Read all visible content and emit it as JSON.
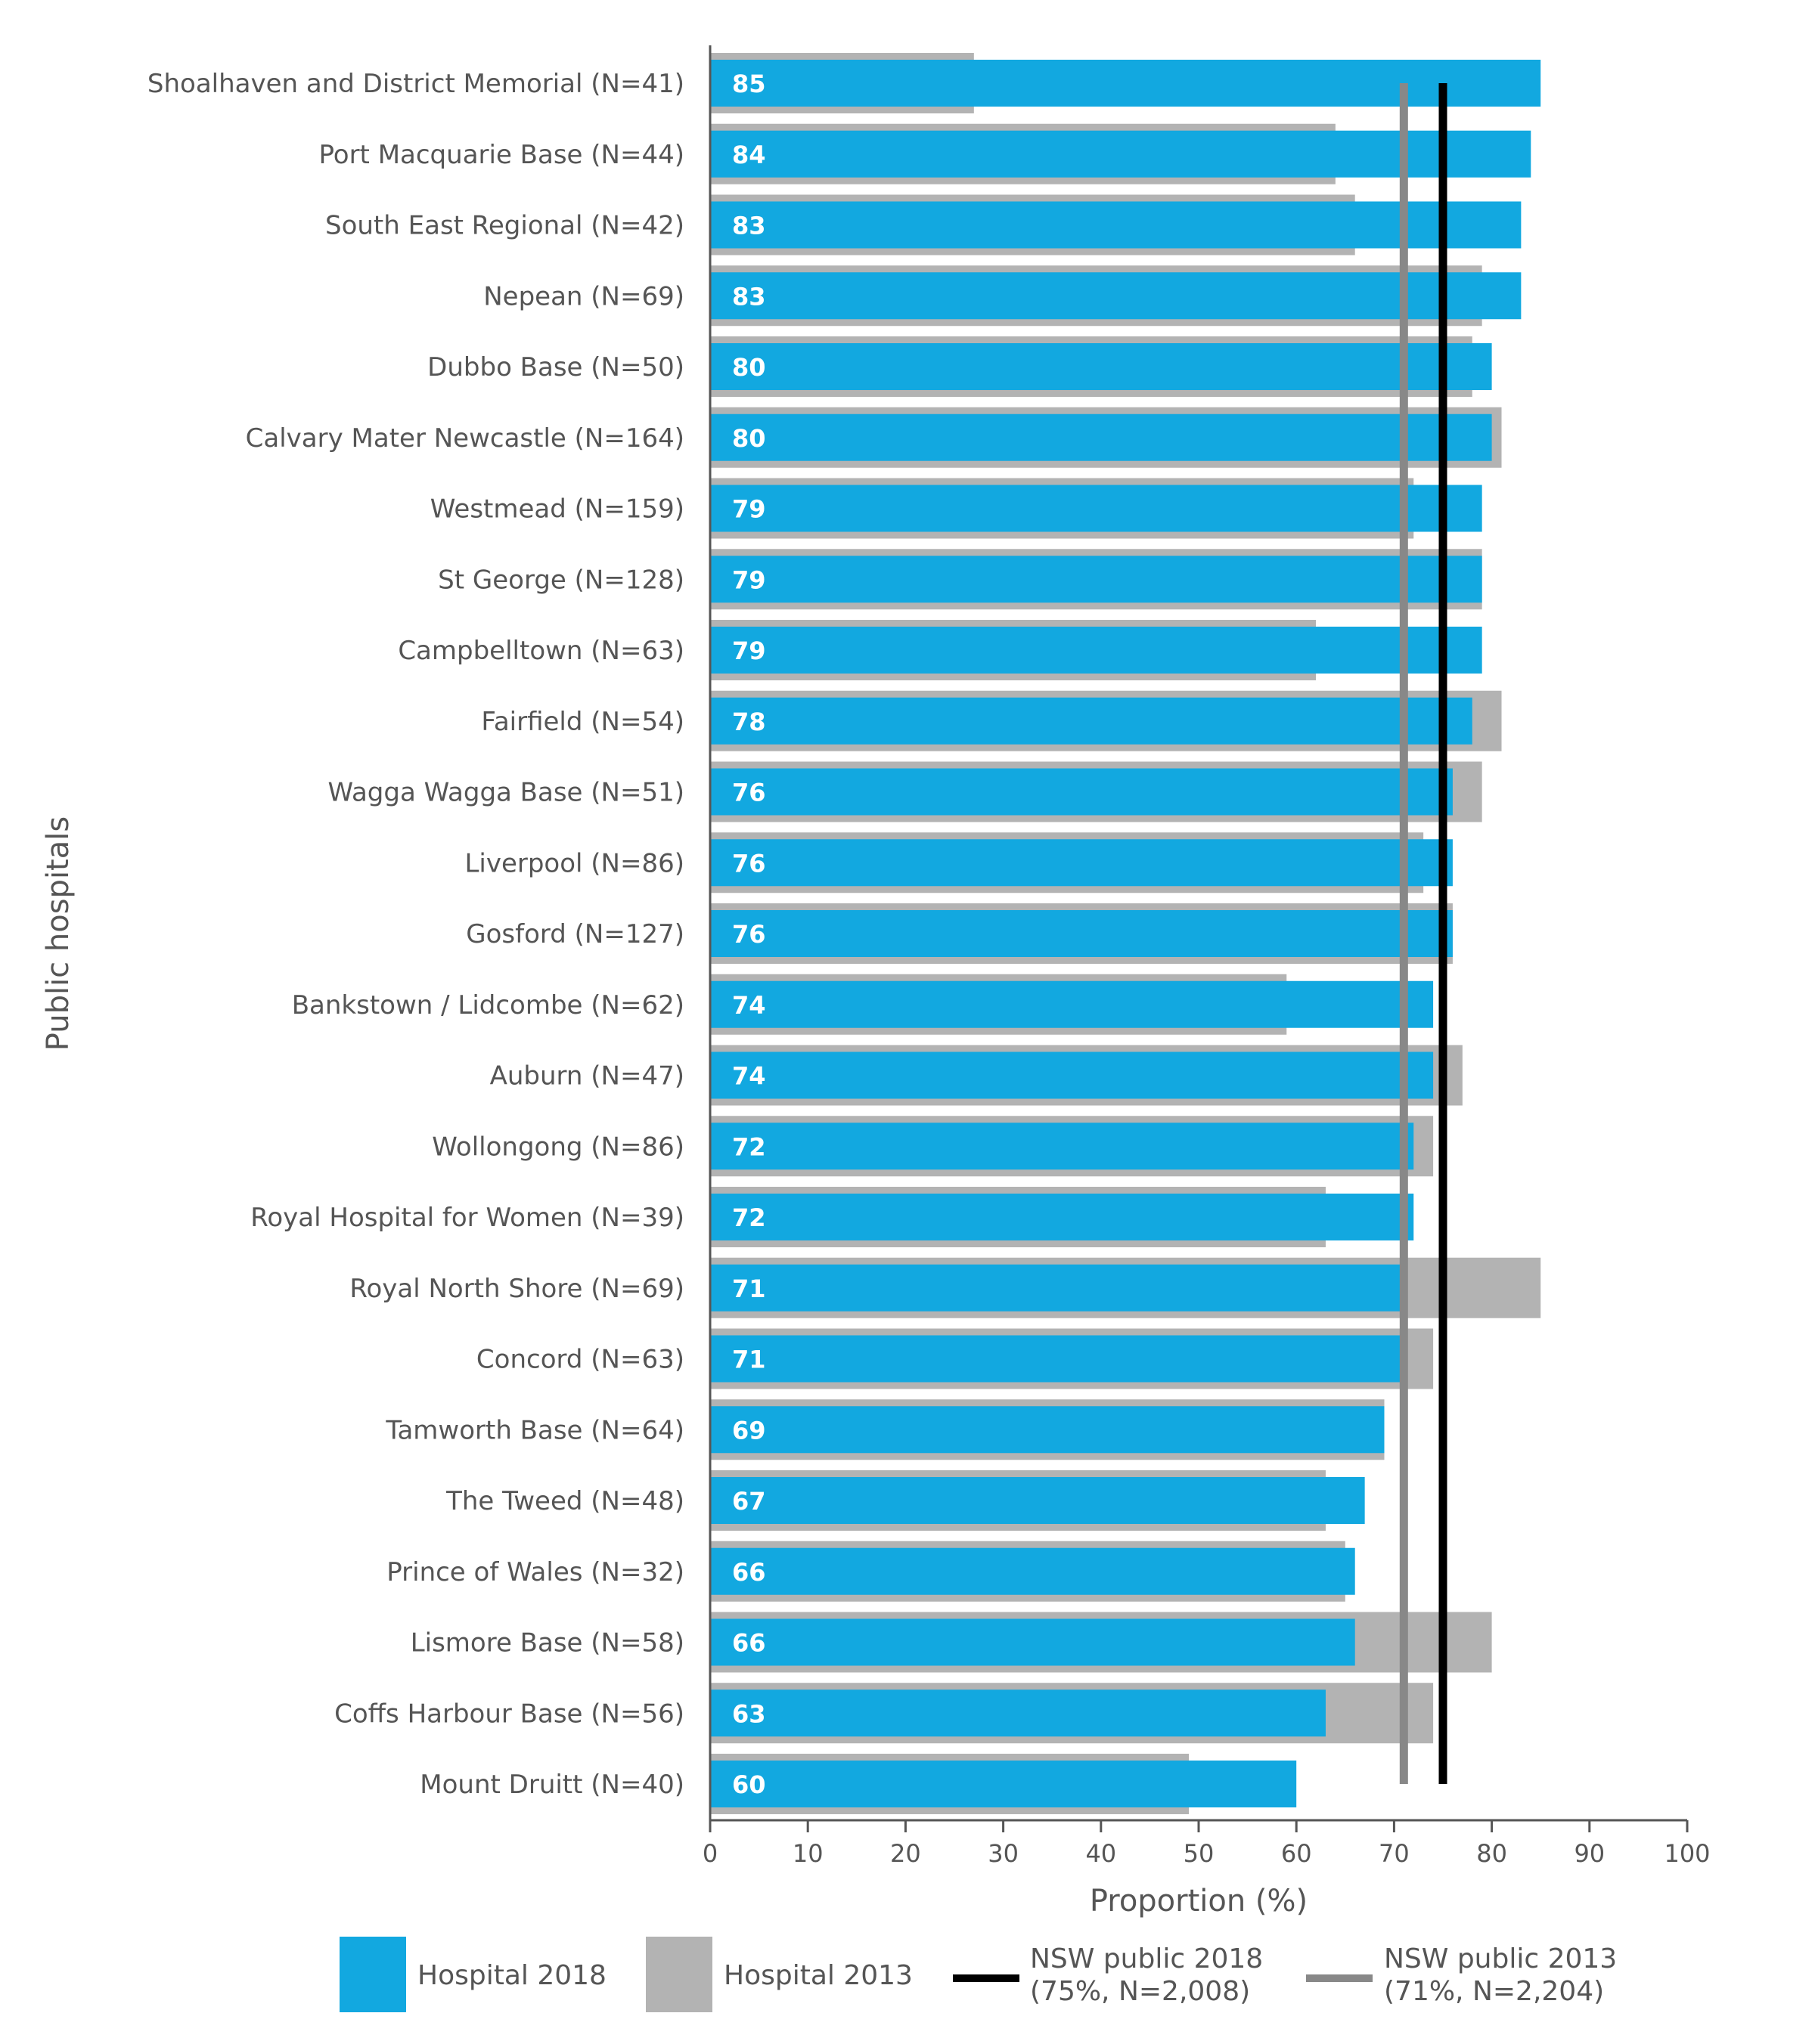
{
  "chart_data": {
    "type": "bar",
    "orientation": "horizontal",
    "xlabel": "Proportion (%)",
    "ylabel": "Public hospitals",
    "xlim": [
      0,
      100
    ],
    "xticks": [
      0,
      10,
      20,
      30,
      40,
      50,
      60,
      70,
      80,
      90,
      100
    ],
    "grid": false,
    "legend_placement": "bottom",
    "categories": [
      "Shoalhaven and District Memorial (N=41)",
      "Port Macquarie Base (N=44)",
      "South East Regional (N=42)",
      "Nepean (N=69)",
      "Dubbo Base (N=50)",
      "Calvary Mater Newcastle (N=164)",
      "Westmead (N=159)",
      "St George (N=128)",
      "Campbelltown (N=63)",
      "Fairfield (N=54)",
      "Wagga Wagga Base (N=51)",
      "Liverpool (N=86)",
      "Gosford (N=127)",
      "Bankstown / Lidcombe (N=62)",
      "Auburn (N=47)",
      "Wollongong (N=86)",
      "Royal Hospital for Women (N=39)",
      "Royal North Shore (N=69)",
      "Concord (N=63)",
      "Tamworth Base (N=64)",
      "The Tweed (N=48)",
      "Prince of Wales (N=32)",
      "Lismore Base (N=58)",
      "Coffs Harbour Base (N=56)",
      "Mount Druitt (N=40)"
    ],
    "series": [
      {
        "name": "Hospital 2018",
        "color": "#12a8e0",
        "values": [
          85,
          84,
          83,
          83,
          80,
          80,
          79,
          79,
          79,
          78,
          76,
          76,
          76,
          74,
          74,
          72,
          72,
          71,
          71,
          69,
          67,
          66,
          66,
          63,
          60
        ]
      },
      {
        "name": "Hospital 2013",
        "color": "#b3b3b3",
        "values": [
          27,
          64,
          66,
          79,
          78,
          81,
          72,
          79,
          62,
          81,
          79,
          73,
          76,
          59,
          77,
          74,
          63,
          85,
          74,
          69,
          63,
          65,
          80,
          74,
          49
        ]
      }
    ],
    "reference_lines": [
      {
        "name": "NSW public 2018",
        "detail": "(75%, N=2,008)",
        "value": 75,
        "color": "#000000"
      },
      {
        "name": "NSW public 2013",
        "detail": "(71%, N=2,204)",
        "value": 71,
        "color": "#888888"
      }
    ]
  }
}
